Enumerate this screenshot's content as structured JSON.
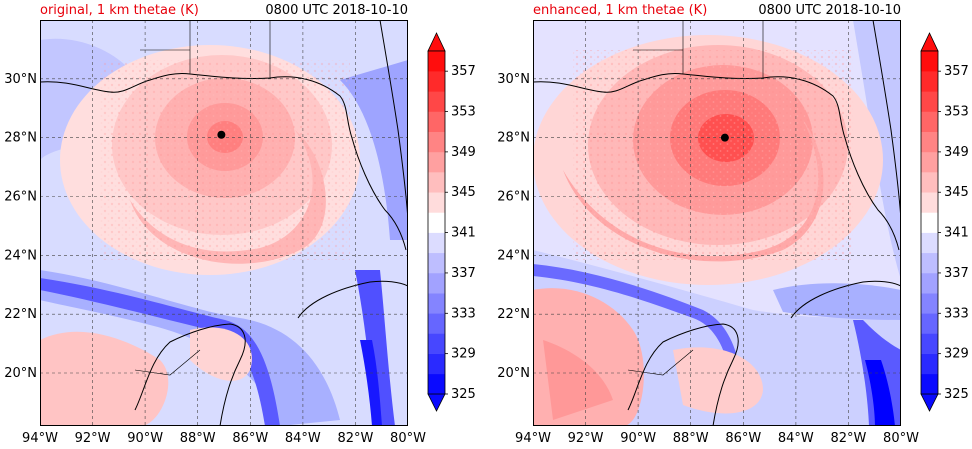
{
  "panels": [
    {
      "id": "original",
      "title_left": "original, 1 km thetae (K)",
      "title_right": "0800 UTC 2018-10-10",
      "storm_center": {
        "lon": -87.1,
        "lat": 28.1
      }
    },
    {
      "id": "enhanced",
      "title_left": "enhanced, 1 km thetae (K)",
      "title_right": "0800 UTC 2018-10-10",
      "storm_center": {
        "lon": -86.7,
        "lat": 28.0
      }
    }
  ],
  "x_ticks": [
    "94°W",
    "92°W",
    "90°W",
    "88°W",
    "86°W",
    "84°W",
    "82°W",
    "80°W"
  ],
  "y_ticks": [
    "20°N",
    "22°N",
    "24°N",
    "26°N",
    "28°N",
    "30°N"
  ],
  "colorbar_labels": [
    "325",
    "329",
    "333",
    "337",
    "341",
    "345",
    "349",
    "353",
    "357"
  ],
  "chart_data": {
    "type": "heatmap",
    "variable": "1 km thetae (K)",
    "lon_range": [
      -94,
      -80
    ],
    "lat_range": [
      18.2,
      32.0
    ],
    "levels": [
      325,
      327,
      329,
      331,
      333,
      335,
      337,
      339,
      341,
      343,
      345,
      347,
      349,
      351,
      353,
      355,
      357,
      359
    ],
    "colormap": [
      "#0a0aff",
      "#2a2aff",
      "#4747ff",
      "#6666ff",
      "#8484ff",
      "#a2a2ff",
      "#bebeff",
      "#dcdcff",
      "#ffffff",
      "#ffdcdc",
      "#ffbebe",
      "#ffa0a0",
      "#ff8484",
      "#ff6666",
      "#ff4747",
      "#ff2a2a",
      "#ff0d0d"
    ],
    "gridlines": true
  }
}
